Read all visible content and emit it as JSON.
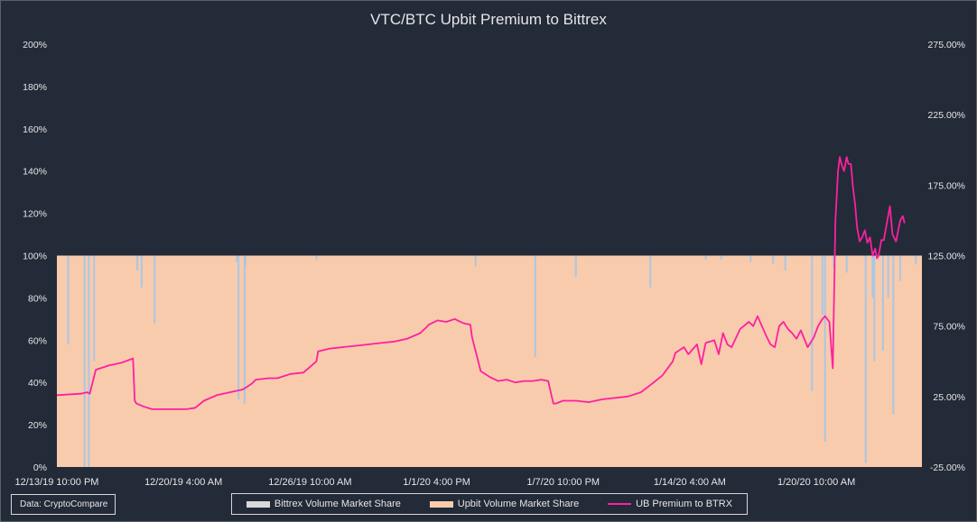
{
  "colors": {
    "background": "#232a38",
    "bittrex_share": "#a9c7e3",
    "upbit_share": "#f8cbad",
    "premium_line": "#ff1fa0",
    "legend_bittrex": "#d9d9d9"
  },
  "source_label": "Data: CryptoCompare",
  "chart_data": {
    "type": "area+line",
    "title": "VTC/BTC Upbit Premium to Bittrex",
    "left_axis": {
      "ticks": [
        "0%",
        "20%",
        "40%",
        "60%",
        "80%",
        "100%",
        "120%",
        "140%",
        "160%",
        "180%",
        "200%"
      ],
      "range": [
        0,
        200
      ]
    },
    "right_axis": {
      "ticks": [
        "-25.00%",
        "25.00%",
        "75.00%",
        "125.00%",
        "175.00%",
        "225.00%",
        "275.00%"
      ],
      "range": [
        -25,
        275
      ]
    },
    "x_tick_labels": [
      "12/13/19 10:00 PM",
      "12/20/19 4:00 AM",
      "12/26/19 10:00 AM",
      "1/1/20 4:00 PM",
      "1/7/20 10:00 PM",
      "1/14/20 4:00 AM",
      "1/20/20 10:00 AM"
    ],
    "legend": [
      "Bittrex Volume Market Share",
      "Upbit Volume Market Share",
      "UB Premium to BTRX"
    ],
    "series": [
      {
        "name": "Upbit Volume Market Share",
        "note": "stacked share; Upbit share = 100% minus Bittrex share",
        "x": [
          0,
          1000
        ],
        "values": [
          100,
          100
        ]
      },
      {
        "name": "Bittrex Volume Market Share",
        "spikes": [
          {
            "x": 13,
            "value": 42
          },
          {
            "x": 32,
            "value": 100
          },
          {
            "x": 37,
            "value": 100
          },
          {
            "x": 43,
            "value": 50
          },
          {
            "x": 93,
            "value": 7
          },
          {
            "x": 98,
            "value": 15
          },
          {
            "x": 113,
            "value": 32
          },
          {
            "x": 208,
            "value": 3
          },
          {
            "x": 210,
            "value": 68
          },
          {
            "x": 217,
            "value": 70
          },
          {
            "x": 218,
            "value": 5
          },
          {
            "x": 300,
            "value": 2
          },
          {
            "x": 484,
            "value": 5
          },
          {
            "x": 553,
            "value": 48
          },
          {
            "x": 600,
            "value": 10
          },
          {
            "x": 686,
            "value": 15
          },
          {
            "x": 750,
            "value": 2
          },
          {
            "x": 768,
            "value": 2
          },
          {
            "x": 802,
            "value": 3
          },
          {
            "x": 828,
            "value": 4
          },
          {
            "x": 842,
            "value": 7
          },
          {
            "x": 873,
            "value": 64
          },
          {
            "x": 885,
            "value": 28
          },
          {
            "x": 888,
            "value": 88
          },
          {
            "x": 898,
            "value": 6
          },
          {
            "x": 913,
            "value": 8
          },
          {
            "x": 935,
            "value": 98
          },
          {
            "x": 943,
            "value": 20
          },
          {
            "x": 945,
            "value": 50
          },
          {
            "x": 955,
            "value": 45
          },
          {
            "x": 961,
            "value": 20
          },
          {
            "x": 967,
            "value": 75
          },
          {
            "x": 975,
            "value": 12
          },
          {
            "x": 993,
            "value": 4
          }
        ]
      },
      {
        "name": "UB Premium to BTRX",
        "x": [
          0,
          28,
          35,
          38,
          45,
          60,
          75,
          88,
          90,
          92,
          100,
          110,
          130,
          150,
          160,
          170,
          185,
          200,
          215,
          225,
          230,
          245,
          255,
          270,
          285,
          300,
          302,
          315,
          330,
          345,
          360,
          375,
          390,
          405,
          420,
          427,
          430,
          440,
          450,
          460,
          470,
          478,
          480,
          490,
          500,
          510,
          520,
          530,
          540,
          550,
          560,
          568,
          572,
          574,
          577,
          585,
          600,
          615,
          630,
          645,
          660,
          675,
          690,
          700,
          712,
          715,
          725,
          730,
          740,
          745,
          750,
          760,
          765,
          770,
          775,
          780,
          790,
          800,
          805,
          810,
          815,
          820,
          825,
          830,
          835,
          840,
          845,
          850,
          855,
          860,
          868,
          870,
          875,
          880,
          885,
          888,
          893,
          897,
          900,
          903,
          905,
          907,
          910,
          913,
          915,
          918,
          920,
          923,
          925,
          928,
          931,
          934,
          937,
          940,
          943,
          946,
          948,
          950,
          953,
          956,
          960,
          963,
          966,
          970,
          975,
          978,
          980
        ],
        "values": [
          26,
          27,
          28,
          27,
          44,
          47,
          49,
          52,
          22,
          20,
          18,
          16,
          16,
          16,
          17,
          22,
          26,
          28,
          30,
          34,
          37,
          38,
          38,
          41,
          42,
          50,
          57,
          59,
          60,
          61,
          62,
          63,
          64,
          66,
          70,
          74,
          76,
          79,
          78,
          80,
          77,
          76,
          67,
          43,
          39,
          36,
          37,
          35,
          36,
          36,
          37,
          36,
          25,
          20,
          20,
          22,
          22,
          21,
          23,
          24,
          25,
          28,
          35,
          40,
          50,
          56,
          60,
          55,
          62,
          48,
          63,
          65,
          55,
          70,
          62,
          60,
          73,
          78,
          75,
          82,
          75,
          68,
          62,
          60,
          75,
          78,
          73,
          70,
          66,
          72,
          60,
          62,
          67,
          75,
          80,
          82,
          78,
          45,
          150,
          185,
          195,
          190,
          185,
          195,
          190,
          190,
          175,
          160,
          145,
          135,
          138,
          143,
          134,
          138,
          125,
          130,
          123,
          125,
          136,
          136,
          150,
          160,
          140,
          135,
          150,
          153,
          148
        ]
      }
    ]
  }
}
